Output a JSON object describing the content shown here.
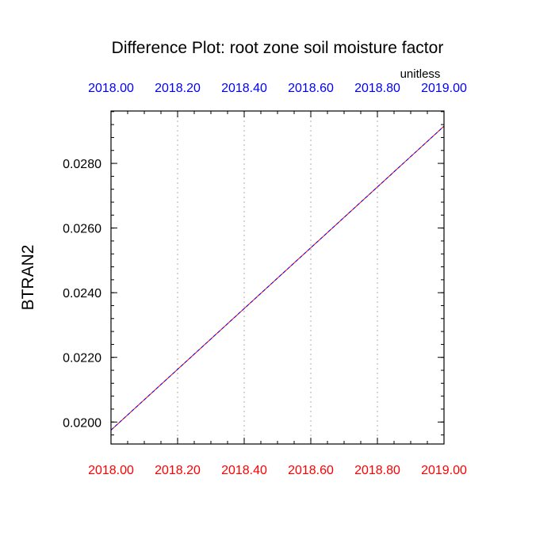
{
  "chart_data": {
    "type": "line",
    "title": "Difference Plot: root zone soil moisture factor",
    "units": "unitless",
    "ylabel": "BTRAN2",
    "xlabel": "",
    "xlim": [
      2018.0,
      2019.0
    ],
    "ylim": [
      0.01932,
      0.02962
    ],
    "x_ticks": [
      2018.0,
      2018.2,
      2018.4,
      2018.6,
      2018.8,
      2019.0
    ],
    "x_tick_labels": [
      "2018.00",
      "2018.20",
      "2018.40",
      "2018.60",
      "2018.80",
      "2019.00"
    ],
    "y_ticks": [
      0.02,
      0.022,
      0.024,
      0.026,
      0.028
    ],
    "y_tick_labels": [
      "0.0200",
      "0.0220",
      "0.0240",
      "0.0260",
      "0.0280"
    ],
    "grid": "vertical dotted gridlines at major x ticks",
    "top_axis_color": "#0000ff",
    "bottom_axis_color": "#ff0000",
    "series": [
      {
        "color": "#ff0000",
        "x": [
          2018.0,
          2019.0
        ],
        "y": [
          0.01975,
          0.02915
        ]
      },
      {
        "color": "#0000ff",
        "x": [
          2018.0,
          2019.0
        ],
        "y": [
          0.01975,
          0.02915
        ],
        "dash": "dashed"
      }
    ]
  }
}
